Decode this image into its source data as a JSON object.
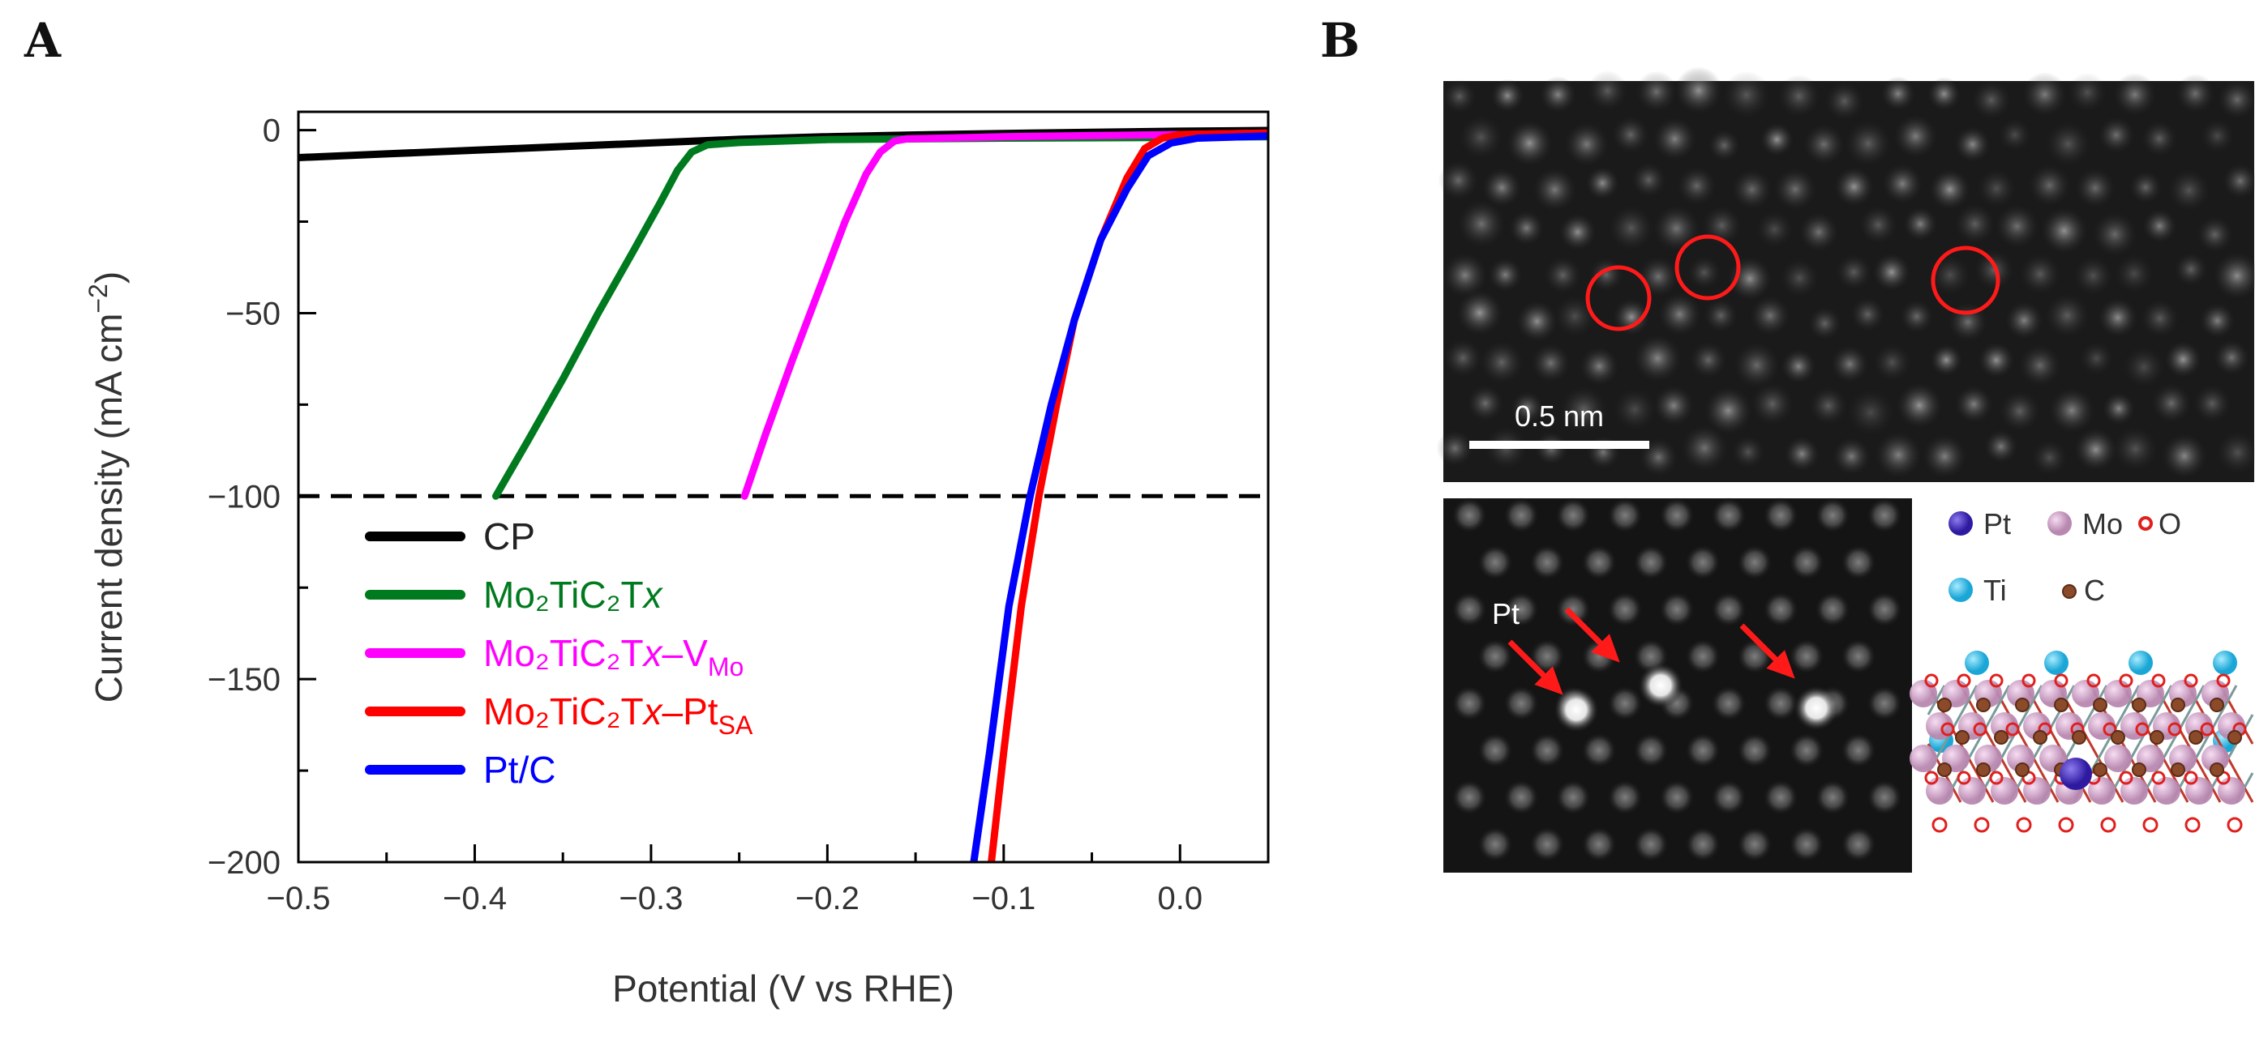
{
  "panels": {
    "a_label": "A",
    "b_label": "B"
  },
  "chart_data": {
    "type": "line",
    "title": "",
    "xlabel": "Potential (V vs RHE)",
    "ylabel": "Current density (mA cm−2)",
    "xlim": [
      -0.5,
      0.05
    ],
    "ylim": [
      -200,
      5
    ],
    "x_ticks": [
      -0.5,
      -0.4,
      -0.3,
      -0.2,
      -0.1,
      0.0
    ],
    "x_tick_labels": [
      "−0.5",
      "−0.4",
      "−0.3",
      "−0.2",
      "−0.1",
      "0.0"
    ],
    "y_ticks": [
      0,
      -50,
      -100,
      -150,
      -200
    ],
    "y_tick_labels": [
      "0",
      "−50",
      "−100",
      "−150",
      "−200"
    ],
    "reference_line": {
      "y": -100,
      "style": "dashed",
      "color": "#000000"
    },
    "legend_position": "bottom-left",
    "series": [
      {
        "name": "CP",
        "color": "#000000",
        "points": [
          [
            -0.5,
            -7.5
          ],
          [
            -0.45,
            -6.5
          ],
          [
            -0.4,
            -5.5
          ],
          [
            -0.35,
            -4.5
          ],
          [
            -0.3,
            -3.5
          ],
          [
            -0.25,
            -2.5
          ],
          [
            -0.2,
            -1.8
          ],
          [
            -0.15,
            -1.3
          ],
          [
            -0.1,
            -0.9
          ],
          [
            -0.05,
            -0.6
          ],
          [
            0.0,
            -0.3
          ],
          [
            0.05,
            -0.1
          ]
        ]
      },
      {
        "name": "Mo2TiC2Tx",
        "color": "#007a1e",
        "points": [
          [
            -0.388,
            -100
          ],
          [
            -0.37,
            -85
          ],
          [
            -0.35,
            -68
          ],
          [
            -0.33,
            -50
          ],
          [
            -0.31,
            -33
          ],
          [
            -0.295,
            -20
          ],
          [
            -0.285,
            -11
          ],
          [
            -0.277,
            -6
          ],
          [
            -0.268,
            -4
          ],
          [
            -0.25,
            -3.4
          ],
          [
            -0.2,
            -2.6
          ],
          [
            -0.1,
            -2.2
          ],
          [
            0.0,
            -2.0
          ],
          [
            0.05,
            -1.8
          ]
        ]
      },
      {
        "name": "Mo2TiC2Tx–VMo",
        "color": "#ff00ff",
        "points": [
          [
            -0.247,
            -100
          ],
          [
            -0.235,
            -83
          ],
          [
            -0.22,
            -63
          ],
          [
            -0.205,
            -44
          ],
          [
            -0.19,
            -25
          ],
          [
            -0.178,
            -12
          ],
          [
            -0.17,
            -6
          ],
          [
            -0.162,
            -3
          ],
          [
            -0.155,
            -2.4
          ],
          [
            -0.1,
            -1.8
          ],
          [
            0.0,
            -1.2
          ],
          [
            0.05,
            -0.8
          ]
        ]
      },
      {
        "name": "Mo2TiC2Tx–PtSA",
        "color": "#ff0000",
        "points": [
          [
            -0.107,
            -200
          ],
          [
            -0.1,
            -170
          ],
          [
            -0.09,
            -130
          ],
          [
            -0.08,
            -100
          ],
          [
            -0.07,
            -75
          ],
          [
            -0.06,
            -52
          ],
          [
            -0.045,
            -30
          ],
          [
            -0.03,
            -13
          ],
          [
            -0.02,
            -5
          ],
          [
            -0.01,
            -2.2
          ],
          [
            0.0,
            -1.2
          ],
          [
            0.05,
            -0.8
          ]
        ]
      },
      {
        "name": "Pt/C",
        "color": "#0000ff",
        "points": [
          [
            -0.117,
            -200
          ],
          [
            -0.108,
            -170
          ],
          [
            -0.097,
            -130
          ],
          [
            -0.085,
            -100
          ],
          [
            -0.073,
            -75
          ],
          [
            -0.06,
            -52
          ],
          [
            -0.045,
            -30
          ],
          [
            -0.03,
            -16
          ],
          [
            -0.018,
            -7
          ],
          [
            -0.005,
            -3.5
          ],
          [
            0.01,
            -2.2
          ],
          [
            0.05,
            -1.6
          ]
        ]
      }
    ],
    "legend_labels": [
      {
        "main": "CP",
        "sub": ""
      },
      {
        "main": "Mo₂TiC₂T",
        "italic": "x",
        "suffix": "",
        "sub": ""
      },
      {
        "main": "Mo₂TiC₂T",
        "italic": "x",
        "suffix": "–V",
        "sub": "Mo"
      },
      {
        "main": "Mo₂TiC₂T",
        "italic": "x",
        "suffix": "–Pt",
        "sub": "SA"
      },
      {
        "main": "Pt/C",
        "sub": ""
      }
    ]
  },
  "panel_b": {
    "scale_bar_label": "0.5 nm",
    "pt_annotation": "Pt",
    "legend": [
      {
        "label": "Pt",
        "color": "#4b2bc2"
      },
      {
        "label": "Mo",
        "color": "#d7a6cf"
      },
      {
        "label": "O",
        "color": "#e0201e"
      },
      {
        "label": "Ti",
        "color": "#3cc0e6"
      },
      {
        "label": "C",
        "color": "#8b4a2a"
      }
    ]
  }
}
